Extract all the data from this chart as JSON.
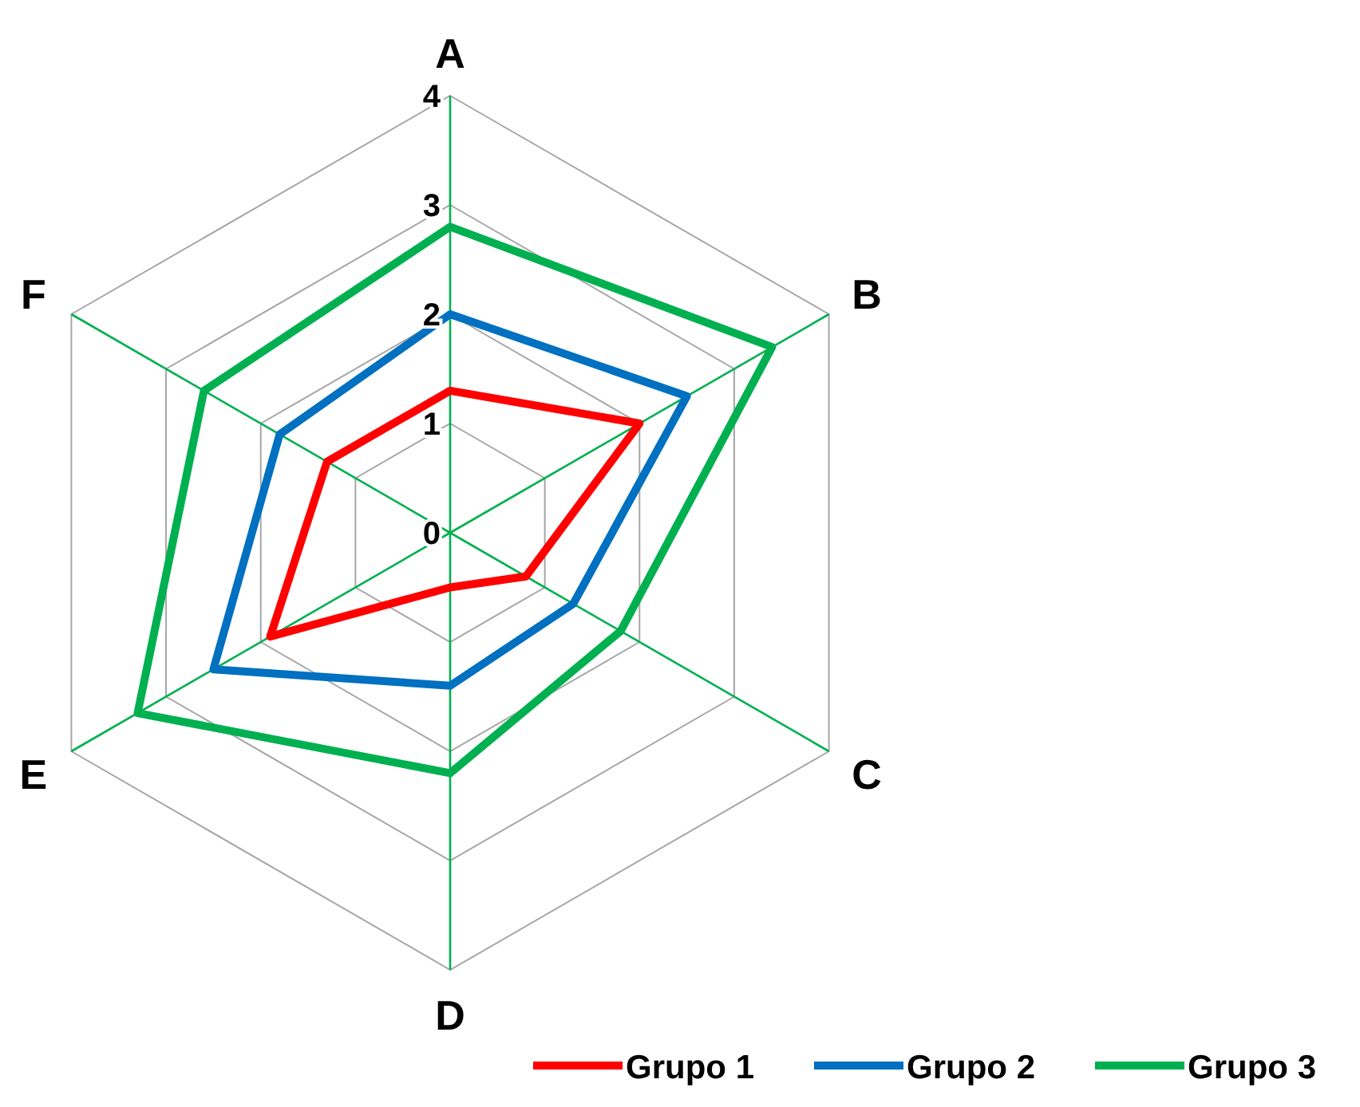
{
  "chart_data": {
    "type": "radar",
    "categories": [
      "A",
      "B",
      "C",
      "D",
      "E",
      "F"
    ],
    "ylim": [
      0,
      4
    ],
    "yticks": [
      0,
      1,
      2,
      3,
      4
    ],
    "grid": true,
    "legend": "bottom right",
    "marker": "none",
    "series": [
      {
        "name": "Grupo 1",
        "color": "#ff0000",
        "values": [
          1.3,
          2,
          0.8,
          0.5,
          1.9,
          1.3
        ]
      },
      {
        "name": "Grupo 2",
        "color": "#0070c0",
        "values": [
          2,
          2.5,
          1.3,
          1.4,
          2.5,
          1.8
        ]
      },
      {
        "name": "Grupo 3",
        "color": "#00b050",
        "values": [
          2.8,
          3.4,
          1.8,
          2.2,
          3.3,
          2.6
        ]
      }
    ]
  }
}
